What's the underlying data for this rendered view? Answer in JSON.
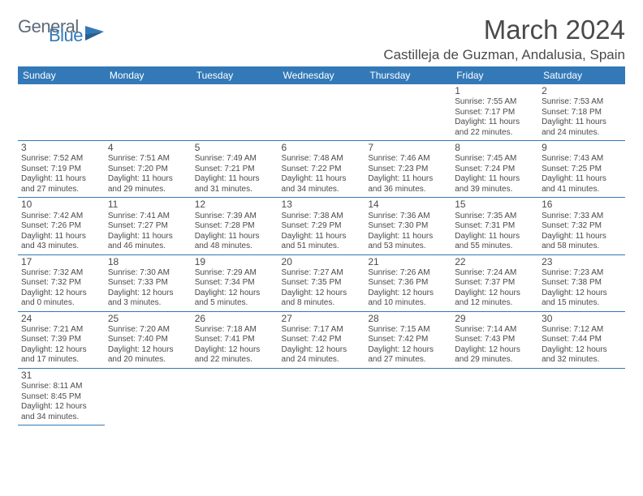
{
  "logo": {
    "general": "General",
    "blue": "Blue"
  },
  "title": {
    "month": "March 2024",
    "location": "Castilleja de Guzman, Andalusia, Spain"
  },
  "colors": {
    "header_bg": "#3379b7",
    "header_text": "#ffffff",
    "border": "#3379b7",
    "text": "#4a4a4a"
  },
  "weekdays": [
    "Sunday",
    "Monday",
    "Tuesday",
    "Wednesday",
    "Thursday",
    "Friday",
    "Saturday"
  ],
  "weeks": [
    [
      null,
      null,
      null,
      null,
      null,
      {
        "d": "1",
        "sr": "7:55 AM",
        "ss": "7:17 PM",
        "dl": "11 hours and 22 minutes."
      },
      {
        "d": "2",
        "sr": "7:53 AM",
        "ss": "7:18 PM",
        "dl": "11 hours and 24 minutes."
      }
    ],
    [
      {
        "d": "3",
        "sr": "7:52 AM",
        "ss": "7:19 PM",
        "dl": "11 hours and 27 minutes."
      },
      {
        "d": "4",
        "sr": "7:51 AM",
        "ss": "7:20 PM",
        "dl": "11 hours and 29 minutes."
      },
      {
        "d": "5",
        "sr": "7:49 AM",
        "ss": "7:21 PM",
        "dl": "11 hours and 31 minutes."
      },
      {
        "d": "6",
        "sr": "7:48 AM",
        "ss": "7:22 PM",
        "dl": "11 hours and 34 minutes."
      },
      {
        "d": "7",
        "sr": "7:46 AM",
        "ss": "7:23 PM",
        "dl": "11 hours and 36 minutes."
      },
      {
        "d": "8",
        "sr": "7:45 AM",
        "ss": "7:24 PM",
        "dl": "11 hours and 39 minutes."
      },
      {
        "d": "9",
        "sr": "7:43 AM",
        "ss": "7:25 PM",
        "dl": "11 hours and 41 minutes."
      }
    ],
    [
      {
        "d": "10",
        "sr": "7:42 AM",
        "ss": "7:26 PM",
        "dl": "11 hours and 43 minutes."
      },
      {
        "d": "11",
        "sr": "7:41 AM",
        "ss": "7:27 PM",
        "dl": "11 hours and 46 minutes."
      },
      {
        "d": "12",
        "sr": "7:39 AM",
        "ss": "7:28 PM",
        "dl": "11 hours and 48 minutes."
      },
      {
        "d": "13",
        "sr": "7:38 AM",
        "ss": "7:29 PM",
        "dl": "11 hours and 51 minutes."
      },
      {
        "d": "14",
        "sr": "7:36 AM",
        "ss": "7:30 PM",
        "dl": "11 hours and 53 minutes."
      },
      {
        "d": "15",
        "sr": "7:35 AM",
        "ss": "7:31 PM",
        "dl": "11 hours and 55 minutes."
      },
      {
        "d": "16",
        "sr": "7:33 AM",
        "ss": "7:32 PM",
        "dl": "11 hours and 58 minutes."
      }
    ],
    [
      {
        "d": "17",
        "sr": "7:32 AM",
        "ss": "7:32 PM",
        "dl": "12 hours and 0 minutes."
      },
      {
        "d": "18",
        "sr": "7:30 AM",
        "ss": "7:33 PM",
        "dl": "12 hours and 3 minutes."
      },
      {
        "d": "19",
        "sr": "7:29 AM",
        "ss": "7:34 PM",
        "dl": "12 hours and 5 minutes."
      },
      {
        "d": "20",
        "sr": "7:27 AM",
        "ss": "7:35 PM",
        "dl": "12 hours and 8 minutes."
      },
      {
        "d": "21",
        "sr": "7:26 AM",
        "ss": "7:36 PM",
        "dl": "12 hours and 10 minutes."
      },
      {
        "d": "22",
        "sr": "7:24 AM",
        "ss": "7:37 PM",
        "dl": "12 hours and 12 minutes."
      },
      {
        "d": "23",
        "sr": "7:23 AM",
        "ss": "7:38 PM",
        "dl": "12 hours and 15 minutes."
      }
    ],
    [
      {
        "d": "24",
        "sr": "7:21 AM",
        "ss": "7:39 PM",
        "dl": "12 hours and 17 minutes."
      },
      {
        "d": "25",
        "sr": "7:20 AM",
        "ss": "7:40 PM",
        "dl": "12 hours and 20 minutes."
      },
      {
        "d": "26",
        "sr": "7:18 AM",
        "ss": "7:41 PM",
        "dl": "12 hours and 22 minutes."
      },
      {
        "d": "27",
        "sr": "7:17 AM",
        "ss": "7:42 PM",
        "dl": "12 hours and 24 minutes."
      },
      {
        "d": "28",
        "sr": "7:15 AM",
        "ss": "7:42 PM",
        "dl": "12 hours and 27 minutes."
      },
      {
        "d": "29",
        "sr": "7:14 AM",
        "ss": "7:43 PM",
        "dl": "12 hours and 29 minutes."
      },
      {
        "d": "30",
        "sr": "7:12 AM",
        "ss": "7:44 PM",
        "dl": "12 hours and 32 minutes."
      }
    ],
    [
      {
        "d": "31",
        "sr": "8:11 AM",
        "ss": "8:45 PM",
        "dl": "12 hours and 34 minutes."
      },
      null,
      null,
      null,
      null,
      null,
      null
    ]
  ],
  "labels": {
    "sunrise": "Sunrise:",
    "sunset": "Sunset:",
    "daylight": "Daylight:"
  }
}
